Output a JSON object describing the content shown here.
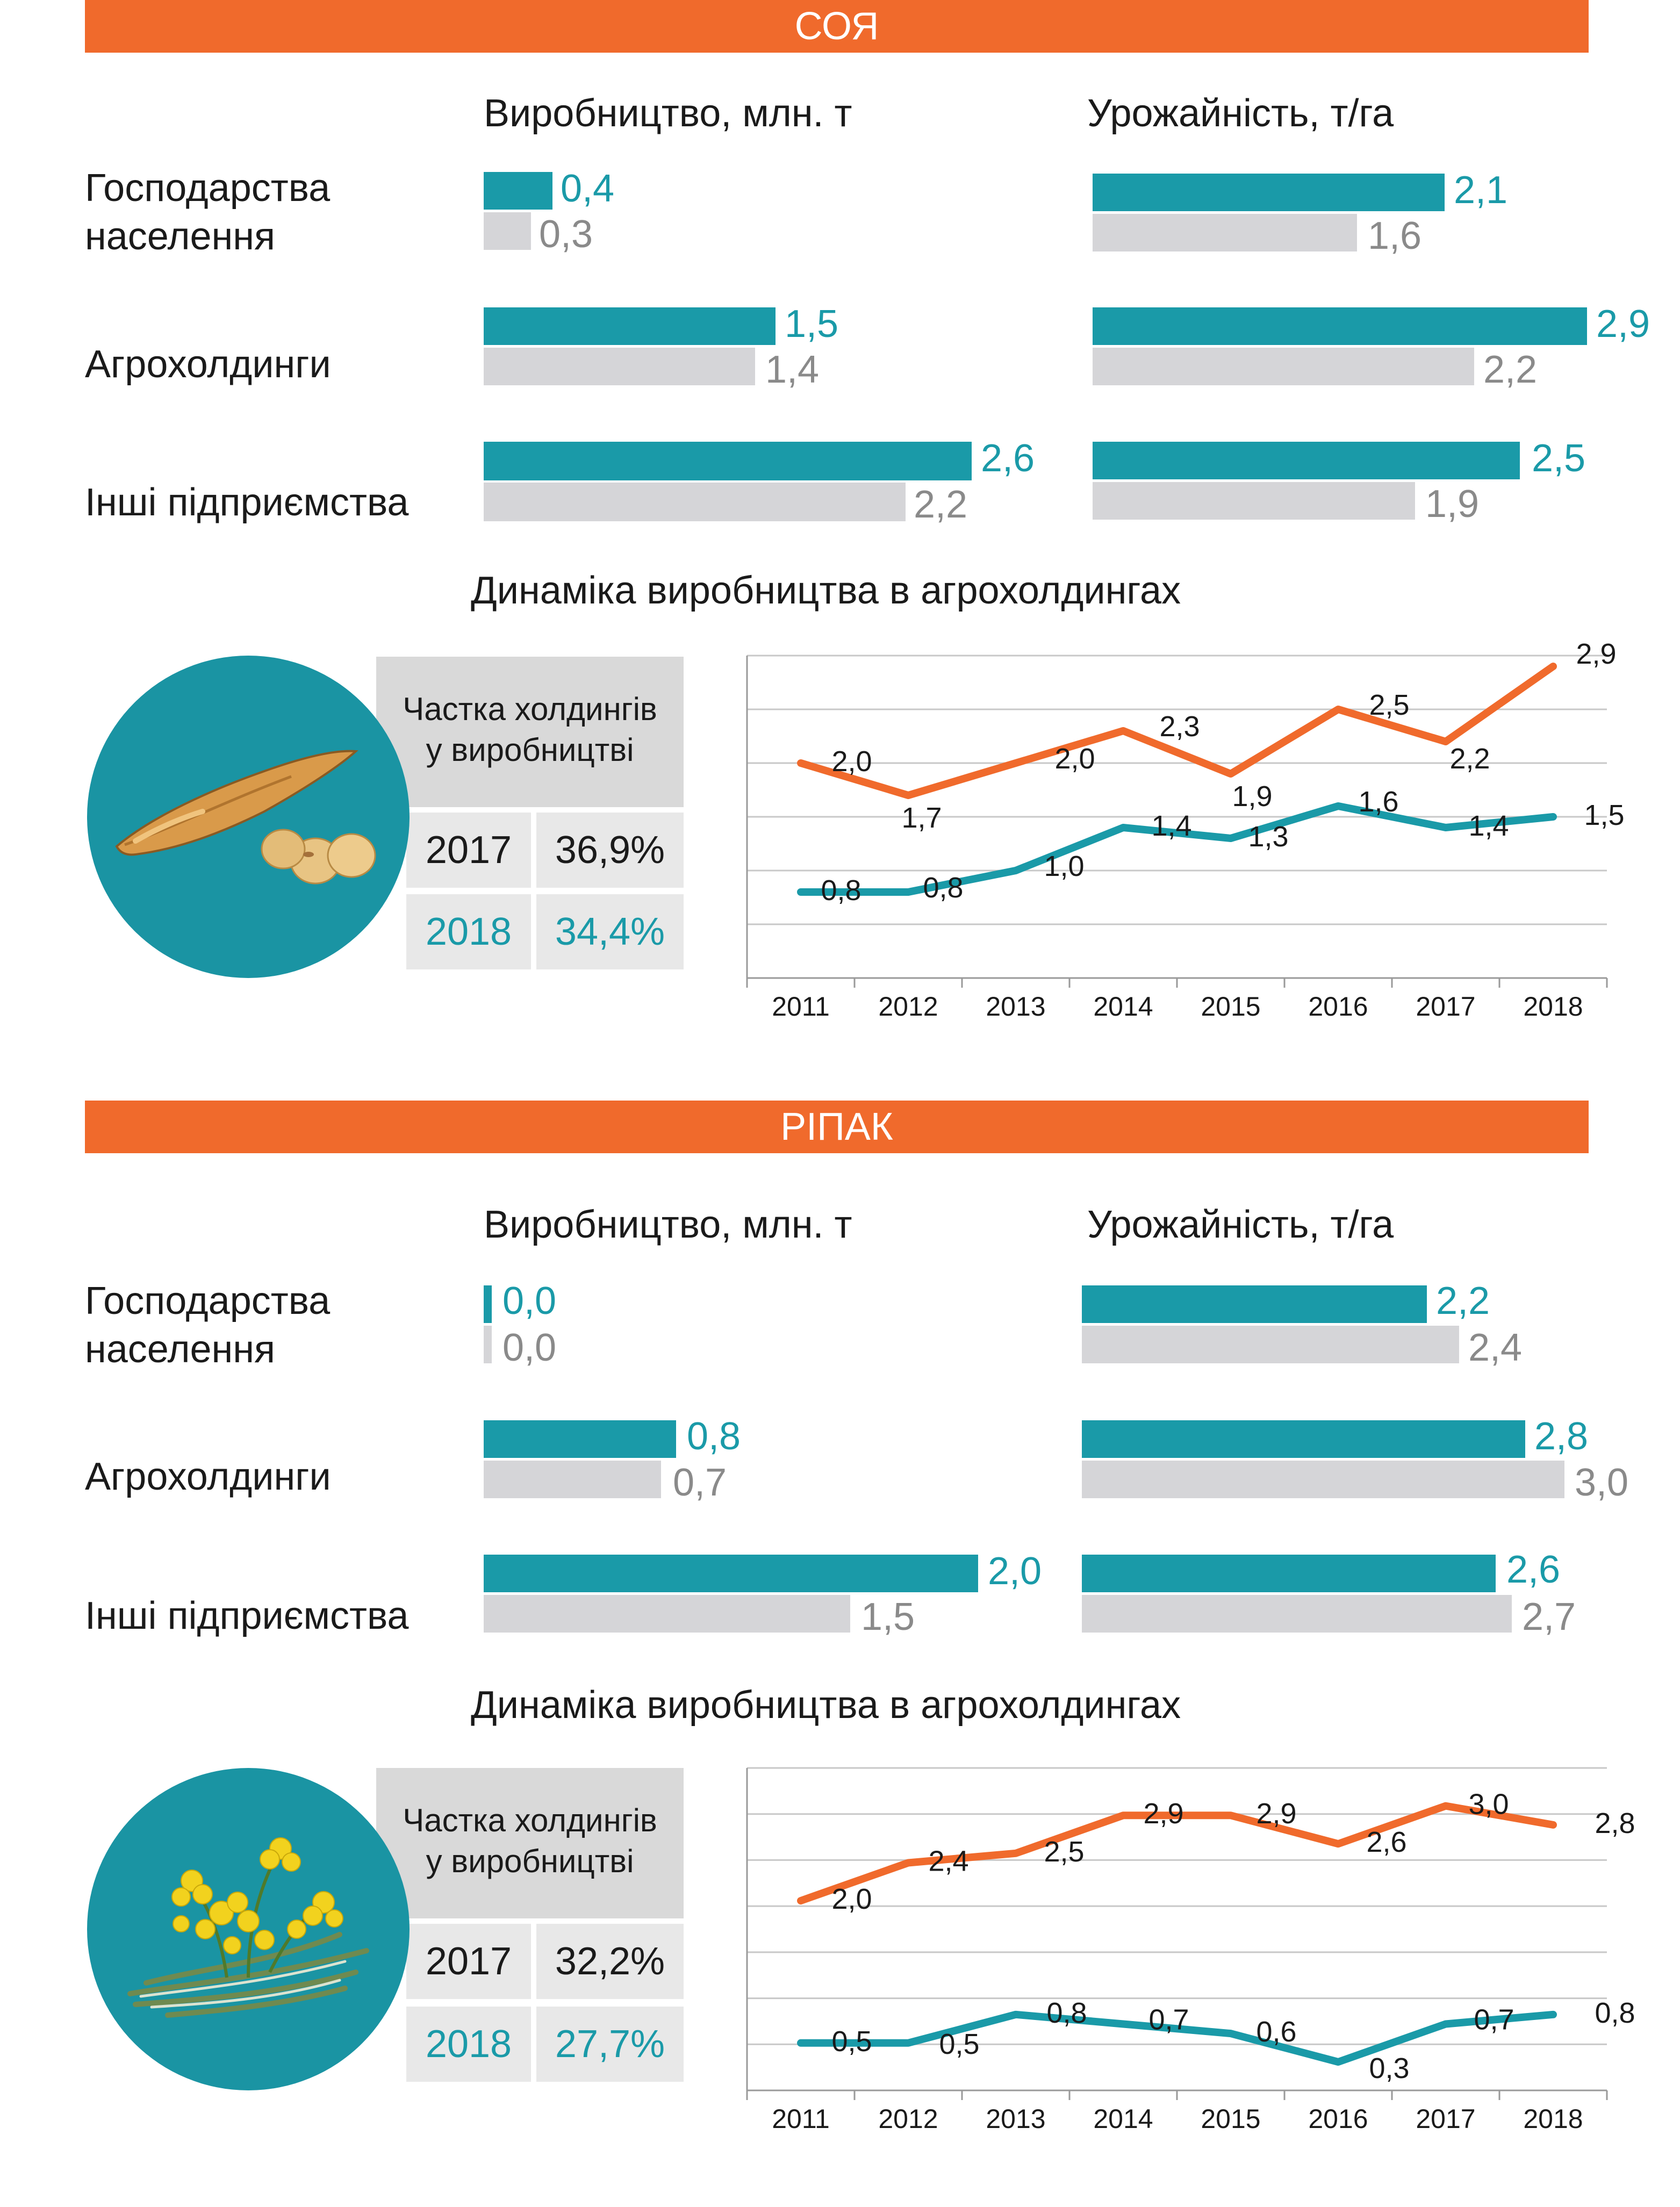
{
  "colors": {
    "orange": "#f06a2c",
    "teal": "#1a9aa8",
    "gray": "#d5d5d8"
  },
  "sections": [
    {
      "title": "СОЯ",
      "production_header": "Виробництво, млн. т",
      "yield_header": "Урожайність, т/га",
      "rows": [
        {
          "label": "Господарства населення",
          "production": {
            "v2018": "0,4",
            "v2017": "0,3"
          },
          "yield": {
            "v2018": "2,1",
            "v2017": "1,6"
          }
        },
        {
          "label": "Агрохолдинги",
          "production": {
            "v2018": "1,5",
            "v2017": "1,4"
          },
          "yield": {
            "v2018": "2,9",
            "v2017": "2,2"
          }
        },
        {
          "label": "Інші підприємства",
          "production": {
            "v2018": "2,6",
            "v2017": "2,2"
          },
          "yield": {
            "v2018": "2,5",
            "v2017": "1,9"
          }
        }
      ],
      "dynamics_title": "Динаміка виробництва в агрохолдингах",
      "share": {
        "title_line1": "Частка холдингів",
        "title_line2": "у виробництві",
        "rows": [
          {
            "year": "2017",
            "value": "36,9%"
          },
          {
            "year": "2018",
            "value": "34,4%"
          }
        ]
      },
      "icon": "soybean-pod-icon"
    },
    {
      "title": "РІПАК",
      "production_header": "Виробництво, млн. т",
      "yield_header": "Урожайність, т/га",
      "rows": [
        {
          "label": "Господарства населення",
          "production": {
            "v2018": "0,0",
            "v2017": "0,0"
          },
          "yield": {
            "v2018": "2,2",
            "v2017": "2,4"
          }
        },
        {
          "label": "Агрохолдинги",
          "production": {
            "v2018": "0,8",
            "v2017": "0,7"
          },
          "yield": {
            "v2018": "2,8",
            "v2017": "3,0"
          }
        },
        {
          "label": "Інші підприємства",
          "production": {
            "v2018": "2,0",
            "v2017": "1,5"
          },
          "yield": {
            "v2018": "2,6",
            "v2017": "2,7"
          }
        }
      ],
      "dynamics_title": "Динаміка виробництва в агрохолдингах",
      "share": {
        "title_line1": "Частка холдингів",
        "title_line2": "у виробництві",
        "rows": [
          {
            "year": "2017",
            "value": "32,2%"
          },
          {
            "year": "2018",
            "value": "27,7%"
          }
        ]
      },
      "icon": "rapeseed-flower-icon"
    }
  ],
  "chart_data": [
    {
      "type": "line",
      "categories": [
        "2011",
        "2012",
        "2013",
        "2014",
        "2015",
        "2016",
        "2017",
        "2018"
      ],
      "series": [
        {
          "color": "#f06a2c",
          "values": [
            2.0,
            1.7,
            2.0,
            2.3,
            1.9,
            2.5,
            2.2,
            2.9
          ],
          "labels": [
            "2,0",
            "1,7",
            "2,0",
            "2,3",
            "1,9",
            "2,5",
            "2,2",
            "2,9"
          ]
        },
        {
          "color": "#1a9aa8",
          "values": [
            0.8,
            0.8,
            1.0,
            1.4,
            1.3,
            1.6,
            1.4,
            1.5
          ],
          "labels": [
            "0,8",
            "0,8",
            "1,0",
            "1,4",
            "1,3",
            "1,6",
            "1,4",
            "1,5"
          ]
        }
      ],
      "ylim": [
        0.0,
        3.0
      ],
      "grid": true
    },
    {
      "type": "line",
      "categories": [
        "2011",
        "2012",
        "2013",
        "2014",
        "2015",
        "2016",
        "2017",
        "2018"
      ],
      "series": [
        {
          "color": "#f06a2c",
          "values": [
            2.0,
            2.4,
            2.5,
            2.9,
            2.9,
            2.6,
            3.0,
            2.8
          ],
          "labels": [
            "2,0",
            "2,4",
            "2,5",
            "2,9",
            "2,9",
            "2,6",
            "3,0",
            "2,8"
          ]
        },
        {
          "color": "#1a9aa8",
          "values": [
            0.5,
            0.5,
            0.8,
            0.7,
            0.6,
            0.3,
            0.7,
            0.8
          ],
          "labels": [
            "0,5",
            "0,5",
            "0,8",
            "0,7",
            "0,6",
            "0,3",
            "0,7",
            "0,8"
          ]
        }
      ],
      "ylim": [
        0.0,
        3.4
      ],
      "grid": true
    }
  ]
}
